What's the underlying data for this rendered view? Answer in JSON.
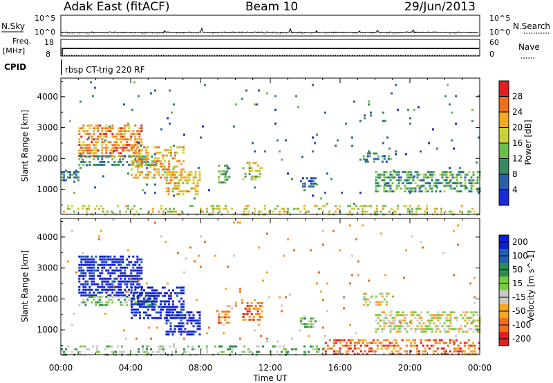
{
  "header": {
    "station": "Adak East (fitACF)",
    "beam": "Beam 10",
    "date": "29/Jun/2013"
  },
  "top_panels": {
    "nsky_label": "N.Sky",
    "nsearch_label": "N.Search",
    "nsky_ticks": [
      "10^5",
      "10^0"
    ],
    "nsearch_ticks": [
      "10^5",
      "10^0"
    ],
    "freq_label": "Freq.",
    "freq_unit": "[MHz]",
    "freq_ticks": [
      "18",
      "8"
    ],
    "nave_label": "Nave",
    "nave_ticks": [
      "60",
      "0"
    ],
    "cpid_label": "CPID",
    "cpid_value": "rbsp CT-trig 220 RF"
  },
  "x_axis": {
    "label": "Time UT",
    "ticks": [
      "00:00",
      "04:00",
      "08:00",
      "12:00",
      "16:00",
      "20:00",
      "00:00"
    ],
    "range_hours": [
      0,
      24
    ]
  },
  "chart_data": [
    {
      "type": "heatmap",
      "panel": "power",
      "ylabel": "Slant Range [km]",
      "y_ticks": [
        "1000",
        "2000",
        "3000",
        "4000"
      ],
      "ylim": [
        200,
        4600
      ],
      "xlim": [
        0,
        24
      ],
      "colorbar": {
        "label": "Power [dB]",
        "ticks": [
          "4",
          "8",
          "12",
          "16",
          "20",
          "24",
          "28"
        ],
        "range": [
          0,
          32
        ],
        "colors": [
          "#1a2bd6",
          "#2a5fa8",
          "#3a8a60",
          "#6abf4b",
          "#c9d23a",
          "#f5a623",
          "#f06e1e",
          "#e02020"
        ]
      },
      "regions": [
        {
          "t0": 0.0,
          "t1": 24.0,
          "r0": 200,
          "r1": 500,
          "level": 0.55,
          "density": 0.3
        },
        {
          "t0": 0.0,
          "t1": 1.0,
          "r0": 1300,
          "r1": 1600,
          "level": 0.25,
          "density": 0.55
        },
        {
          "t0": 1.0,
          "t1": 4.6,
          "r0": 2100,
          "r1": 3100,
          "level": 0.75,
          "density": 0.65
        },
        {
          "t0": 1.0,
          "t1": 5.5,
          "r0": 1800,
          "r1": 2100,
          "level": 0.3,
          "density": 0.55
        },
        {
          "t0": 4.0,
          "t1": 7.0,
          "r0": 1400,
          "r1": 2400,
          "level": 0.65,
          "density": 0.5
        },
        {
          "t0": 6.0,
          "t1": 8.0,
          "r0": 800,
          "r1": 1600,
          "level": 0.6,
          "density": 0.55
        },
        {
          "t0": 9.0,
          "t1": 9.7,
          "r0": 1200,
          "r1": 1800,
          "level": 0.4,
          "density": 0.55
        },
        {
          "t0": 10.4,
          "t1": 11.5,
          "r0": 1300,
          "r1": 1900,
          "level": 0.5,
          "density": 0.55
        },
        {
          "t0": 13.7,
          "t1": 14.6,
          "r0": 1100,
          "r1": 1400,
          "level": 0.2,
          "density": 0.5
        },
        {
          "t0": 18.0,
          "t1": 24.0,
          "r0": 900,
          "r1": 1600,
          "level": 0.35,
          "density": 0.55
        },
        {
          "t0": 17.3,
          "t1": 19.0,
          "r0": 1900,
          "r1": 2200,
          "level": 0.25,
          "density": 0.4
        },
        {
          "t0": 0.0,
          "t1": 24.0,
          "r0": 500,
          "r1": 4500,
          "level": 0.25,
          "density": 0.015
        }
      ]
    },
    {
      "type": "heatmap",
      "panel": "velocity",
      "ylabel": "Slant Range [km]",
      "y_ticks": [
        "1000",
        "2000",
        "3000",
        "4000"
      ],
      "ylim": [
        200,
        4600
      ],
      "xlim": [
        0,
        24
      ],
      "colorbar": {
        "label": "Velocity [m s^-1]",
        "ticks": [
          "200",
          "100",
          "50",
          "15",
          "-15",
          "-50",
          "-100",
          "-200"
        ],
        "colors": [
          "#1020d0",
          "#1f5fb0",
          "#2f8a4e",
          "#7acb3a",
          "#c8c8c8",
          "#f5a623",
          "#f06e1e",
          "#e02020"
        ]
      },
      "regions": [
        {
          "t0": 0.0,
          "t1": 15.0,
          "r0": 200,
          "r1": 500,
          "level": 0.45,
          "density": 0.3
        },
        {
          "t0": 15.0,
          "t1": 24.0,
          "r0": 200,
          "r1": 700,
          "level": 0.8,
          "density": 0.45
        },
        {
          "t0": 1.0,
          "t1": 4.6,
          "r0": 2100,
          "r1": 3400,
          "level": 0.02,
          "density": 0.65
        },
        {
          "t0": 1.0,
          "t1": 5.5,
          "r0": 1800,
          "r1": 2100,
          "level": 0.45,
          "density": 0.55
        },
        {
          "t0": 4.0,
          "t1": 7.0,
          "r0": 1400,
          "r1": 2400,
          "level": 0.02,
          "density": 0.55
        },
        {
          "t0": 6.0,
          "t1": 8.0,
          "r0": 800,
          "r1": 1600,
          "level": 0.02,
          "density": 0.55
        },
        {
          "t0": 9.0,
          "t1": 9.7,
          "r0": 1200,
          "r1": 1800,
          "level": 0.75,
          "density": 0.55
        },
        {
          "t0": 10.4,
          "t1": 11.5,
          "r0": 1300,
          "r1": 1900,
          "level": 0.8,
          "density": 0.55
        },
        {
          "t0": 13.7,
          "t1": 14.6,
          "r0": 1100,
          "r1": 1400,
          "level": 0.4,
          "density": 0.5
        },
        {
          "t0": 18.0,
          "t1": 24.0,
          "r0": 900,
          "r1": 1600,
          "level": 0.55,
          "density": 0.5
        },
        {
          "t0": 17.3,
          "t1": 19.0,
          "r0": 1800,
          "r1": 2200,
          "level": 0.55,
          "density": 0.4
        },
        {
          "t0": 0.0,
          "t1": 24.0,
          "r0": 500,
          "r1": 4500,
          "level": 0.7,
          "density": 0.015
        }
      ]
    }
  ]
}
